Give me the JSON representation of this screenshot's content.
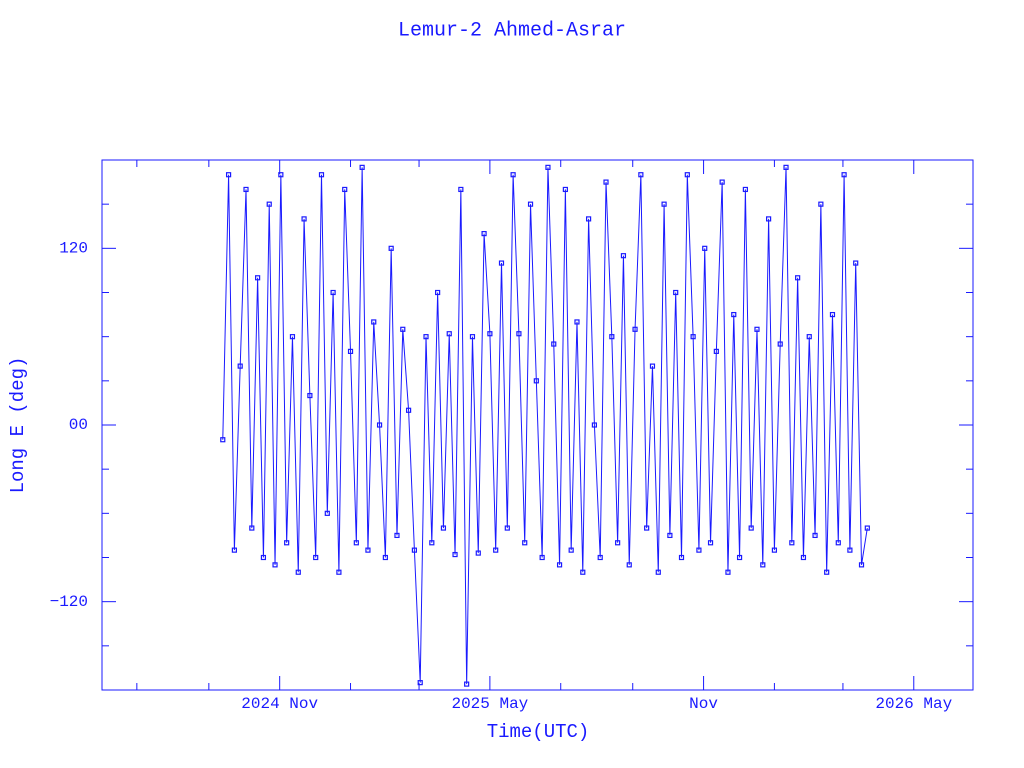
{
  "chart_data": {
    "type": "line",
    "title": "Lemur-2 Ahmed-Asrar",
    "xlabel": "Time(UTC)",
    "ylabel": "Long E (deg)",
    "color": "#1a1aff",
    "markers": true,
    "xlim": [
      "2024-06-01",
      "2026-06-21"
    ],
    "xticks": [
      {
        "value": "2024-11",
        "label": "2024 Nov"
      },
      {
        "value": "2025-05",
        "label": "2025 May"
      },
      {
        "value": "2025-11",
        "label": "Nov"
      },
      {
        "value": "2026-05",
        "label": "2026 May"
      }
    ],
    "xminor": [
      "2024-07",
      "2024-09",
      "2025-01",
      "2025-03",
      "2025-07",
      "2025-09",
      "2026-01",
      "2026-03"
    ],
    "ylim": [
      -180,
      180
    ],
    "yticks": [
      {
        "value": -120,
        "label": "−120"
      },
      {
        "value": 0,
        "label": "00"
      },
      120
    ],
    "yminor": [
      -150,
      -90,
      -60,
      -30,
      30,
      60,
      90,
      150
    ],
    "x": [
      "2024-09-13",
      "2024-09-18",
      "2024-09-23",
      "2024-09-28",
      "2024-10-03",
      "2024-10-08",
      "2024-10-13",
      "2024-10-18",
      "2024-10-23",
      "2024-10-28",
      "2024-11-02",
      "2024-11-07",
      "2024-11-12",
      "2024-11-17",
      "2024-11-22",
      "2024-11-27",
      "2024-12-02",
      "2024-12-07",
      "2024-12-12",
      "2024-12-17",
      "2024-12-22",
      "2024-12-27",
      "2025-01-01",
      "2025-01-06",
      "2025-01-11",
      "2025-01-16",
      "2025-01-21",
      "2025-01-26",
      "2025-01-31",
      "2025-02-05",
      "2025-02-10",
      "2025-02-15",
      "2025-02-20",
      "2025-02-25",
      "2025-03-02",
      "2025-03-07",
      "2025-03-12",
      "2025-03-17",
      "2025-03-22",
      "2025-03-27",
      "2025-04-01",
      "2025-04-06",
      "2025-04-11",
      "2025-04-16",
      "2025-04-21",
      "2025-04-26",
      "2025-05-01",
      "2025-05-06",
      "2025-05-11",
      "2025-05-16",
      "2025-05-21",
      "2025-05-26",
      "2025-05-31",
      "2025-06-05",
      "2025-06-10",
      "2025-06-15",
      "2025-06-20",
      "2025-06-25",
      "2025-06-30",
      "2025-07-05",
      "2025-07-10",
      "2025-07-15",
      "2025-07-20",
      "2025-07-25",
      "2025-07-30",
      "2025-08-04",
      "2025-08-09",
      "2025-08-14",
      "2025-08-19",
      "2025-08-24",
      "2025-08-29",
      "2025-09-03",
      "2025-09-08",
      "2025-09-13",
      "2025-09-18",
      "2025-09-23",
      "2025-09-28",
      "2025-10-03",
      "2025-10-08",
      "2025-10-13",
      "2025-10-18",
      "2025-10-23",
      "2025-10-28",
      "2025-11-02",
      "2025-11-07",
      "2025-11-12",
      "2025-11-17",
      "2025-11-22",
      "2025-11-27",
      "2025-12-02",
      "2025-12-07",
      "2025-12-12",
      "2025-12-17",
      "2025-12-22",
      "2025-12-27",
      "2026-01-01",
      "2026-01-06",
      "2026-01-11",
      "2026-01-16",
      "2026-01-21",
      "2026-01-26",
      "2026-01-31",
      "2026-02-05",
      "2026-02-10",
      "2026-02-15",
      "2026-02-20",
      "2026-02-25",
      "2026-03-02",
      "2026-03-07",
      "2026-03-12",
      "2026-03-17",
      "2026-03-22"
    ],
    "series": [
      {
        "name": "Long E",
        "color": "#1a1aff",
        "values": [
          -10,
          170,
          -85,
          40,
          160,
          -70,
          100,
          -90,
          150,
          -95,
          170,
          -80,
          60,
          -100,
          140,
          20,
          -90,
          170,
          -60,
          90,
          -100,
          160,
          50,
          -80,
          175,
          -85,
          70,
          0,
          -90,
          120,
          -75,
          65,
          10,
          -85,
          -175,
          60,
          -80,
          90,
          -70,
          62,
          -88,
          160,
          -176,
          60,
          -87,
          130,
          62,
          -85,
          110,
          -70,
          170,
          62,
          -80,
          150,
          30,
          -90,
          175,
          55,
          -95,
          160,
          -85,
          70,
          -100,
          140,
          0,
          -90,
          165,
          60,
          -80,
          115,
          -95,
          65,
          170,
          -70,
          40,
          -100,
          150,
          -75,
          90,
          -90,
          170,
          60,
          -85,
          120,
          -80,
          50,
          165,
          -100,
          75,
          -90,
          160,
          -70,
          65,
          -95,
          140,
          -85,
          55,
          175,
          -80,
          100,
          -90,
          60,
          -75,
          150,
          -100,
          75,
          -80,
          170,
          -85,
          110,
          -95,
          -70
        ]
      }
    ]
  }
}
